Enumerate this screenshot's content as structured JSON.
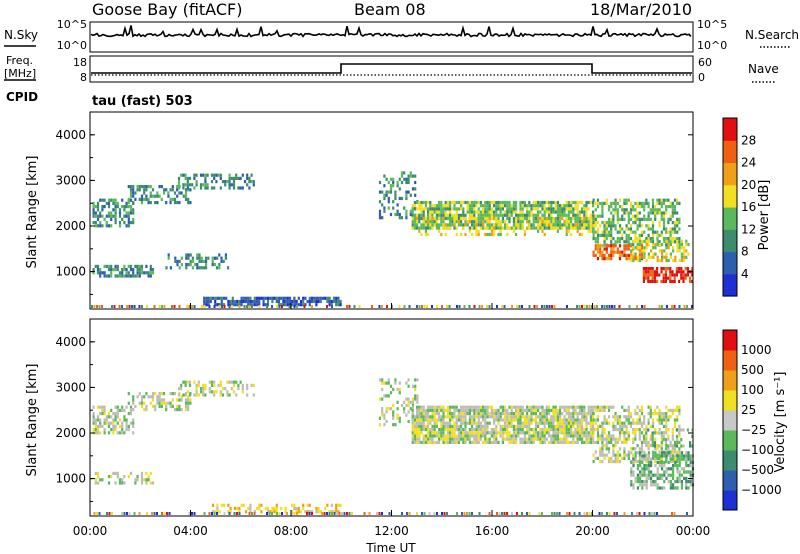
{
  "header": {
    "station": "Goose Bay (fitACF)",
    "beam": "Beam 08",
    "date": "18/Mar/2010"
  },
  "top_panels": {
    "nsky": {
      "label": "N.Sky",
      "ticks": [
        "10^5",
        "10^0"
      ],
      "right_ticks": [
        "10^5",
        "10^0"
      ],
      "right_label": "N.Search"
    },
    "freq": {
      "label_line1": "Freq.",
      "label_line2": "[MHz]",
      "ticks": [
        "18",
        "8"
      ],
      "right_ticks": [
        "60",
        "0"
      ],
      "right_label": "Nave"
    },
    "cpid_label": "CPID",
    "cpid_value": "tau (fast) 503"
  },
  "colors": {
    "power_scale": [
      "#1f2fd6",
      "#2e5fae",
      "#3d8c6e",
      "#5cb85c",
      "#f0e020",
      "#f0a018",
      "#f06010",
      "#e01010"
    ],
    "velocity_scale": [
      "#1f2fd6",
      "#2e5fae",
      "#3d8c6e",
      "#5cb85c",
      "#c8c8c8",
      "#f0e020",
      "#f0a018",
      "#f06010",
      "#e01010"
    ],
    "gs_gray": "#bdbdb5"
  },
  "chart_data": [
    {
      "type": "heatmap",
      "panel": "power",
      "ylabel": "Slant Range [km]",
      "colorbar_label": "Power [dB]",
      "colorbar_ticks": [
        "28",
        "24",
        "20",
        "16",
        "12",
        "8",
        "4"
      ],
      "ylim": [
        180,
        4500
      ],
      "yticks": [
        "4000",
        "3000",
        "2000",
        "1000"
      ],
      "xlim_hours": [
        0,
        24
      ],
      "regions": [
        {
          "t": [
            0.1,
            1.7
          ],
          "r": [
            2000,
            2600
          ],
          "level": 2,
          "density": 0.55
        },
        {
          "t": [
            1.5,
            4.0
          ],
          "r": [
            2500,
            2900
          ],
          "level": 2,
          "density": 0.45
        },
        {
          "t": [
            3.5,
            6.5
          ],
          "r": [
            2800,
            3150
          ],
          "level": 2,
          "density": 0.5
        },
        {
          "t": [
            0.1,
            2.5
          ],
          "r": [
            900,
            1150
          ],
          "level": 2,
          "density": 0.55
        },
        {
          "t": [
            3.0,
            5.5
          ],
          "r": [
            1050,
            1400
          ],
          "level": 2,
          "density": 0.35
        },
        {
          "t": [
            4.5,
            10.0
          ],
          "r": [
            250,
            450
          ],
          "level": 1,
          "density": 0.7
        },
        {
          "t": [
            11.5,
            13.0
          ],
          "r": [
            2200,
            3200
          ],
          "level": 2,
          "density": 0.3
        },
        {
          "t": [
            12.8,
            20.0
          ],
          "r": [
            1950,
            2550
          ],
          "level": 3,
          "density": 0.8
        },
        {
          "t": [
            12.8,
            20.0
          ],
          "r": [
            1800,
            2200
          ],
          "level": 4,
          "density": 0.35
        },
        {
          "t": [
            20.0,
            23.5
          ],
          "r": [
            1600,
            2600
          ],
          "level": 3,
          "density": 0.55
        },
        {
          "t": [
            20.0,
            22.0
          ],
          "r": [
            1300,
            1600
          ],
          "level": 6,
          "density": 0.7
        },
        {
          "t": [
            21.5,
            23.8
          ],
          "r": [
            1250,
            1700
          ],
          "level": 4,
          "density": 0.55
        },
        {
          "t": [
            22.0,
            24.0
          ],
          "r": [
            780,
            1100
          ],
          "level": 7,
          "density": 0.75
        }
      ]
    },
    {
      "type": "heatmap",
      "panel": "velocity",
      "ylabel": "Slant Range [km]",
      "colorbar_label": "Velocity [m s⁻¹]",
      "colorbar_ticks": [
        "1000",
        "500",
        "100",
        "25",
        "−25",
        "−100",
        "−500",
        "−1000"
      ],
      "ylim": [
        180,
        4500
      ],
      "yticks": [
        "4000",
        "3000",
        "2000",
        "1000"
      ],
      "xlim_hours": [
        0,
        24
      ],
      "xticks": [
        "00:00",
        "04:00",
        "08:00",
        "12:00",
        "16:00",
        "20:00",
        "00:00"
      ],
      "xlabel": "Time UT",
      "regions": [
        {
          "t": [
            0.1,
            1.7
          ],
          "r": [
            2000,
            2600
          ],
          "level": 4,
          "density": 0.45
        },
        {
          "t": [
            1.5,
            4.0
          ],
          "r": [
            2500,
            2900
          ],
          "level": 4,
          "density": 0.4
        },
        {
          "t": [
            3.5,
            6.5
          ],
          "r": [
            2800,
            3150
          ],
          "level": 4,
          "density": 0.45
        },
        {
          "t": [
            0.1,
            2.5
          ],
          "r": [
            900,
            1150
          ],
          "level": 4,
          "density": 0.4
        },
        {
          "t": [
            4.5,
            10.0
          ],
          "r": [
            250,
            450
          ],
          "level": 5,
          "density": 0.45
        },
        {
          "t": [
            11.5,
            13.0
          ],
          "r": [
            2200,
            3200
          ],
          "level": 4,
          "density": 0.3
        },
        {
          "t": [
            12.8,
            20.0
          ],
          "r": [
            1800,
            2600
          ],
          "level": 4,
          "density": 0.85
        },
        {
          "t": [
            20.0,
            23.5
          ],
          "r": [
            1400,
            2600
          ],
          "level": 4,
          "density": 0.55
        },
        {
          "t": [
            21.5,
            24.0
          ],
          "r": [
            800,
            1600
          ],
          "level": 3,
          "density": 0.55
        },
        {
          "t": [
            22.0,
            24.0
          ],
          "r": [
            1700,
            2100
          ],
          "level": 3,
          "density": 0.35
        }
      ]
    }
  ]
}
